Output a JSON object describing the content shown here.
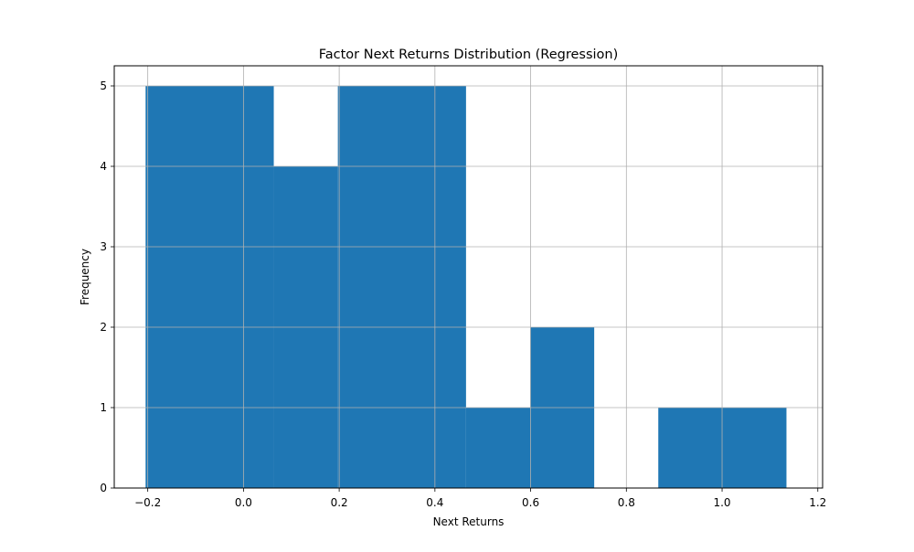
{
  "chart_data": {
    "type": "bar",
    "title": "Factor Next Returns Distribution (Regression)",
    "xlabel": "Next Returns",
    "ylabel": "Frequency",
    "xlim": [
      -0.27,
      1.21
    ],
    "ylim": [
      0,
      5.25
    ],
    "xticks": [
      -0.2,
      0.0,
      0.2,
      0.4,
      0.6,
      0.8,
      1.0,
      1.2
    ],
    "xtick_labels": [
      "−0.2",
      "0.0",
      "0.2",
      "0.4",
      "0.6",
      "0.8",
      "1.0",
      "1.2"
    ],
    "yticks": [
      0,
      1,
      2,
      3,
      4,
      5
    ],
    "ytick_labels": [
      "0",
      "1",
      "2",
      "3",
      "4",
      "5"
    ],
    "grid": true,
    "bar_color": "#1f77b4",
    "bins": [
      {
        "x0": -0.2045,
        "x1": 0.0633,
        "count": 5
      },
      {
        "x0": 0.0633,
        "x1": 0.1972,
        "count": 4
      },
      {
        "x0": 0.1972,
        "x1": 0.465,
        "count": 5
      },
      {
        "x0": 0.465,
        "x1": 0.5989,
        "count": 1
      },
      {
        "x0": 0.5989,
        "x1": 0.7328,
        "count": 2
      },
      {
        "x0": 0.7328,
        "x1": 0.8667,
        "count": 0
      },
      {
        "x0": 0.8667,
        "x1": 1.1345,
        "count": 1
      }
    ]
  }
}
